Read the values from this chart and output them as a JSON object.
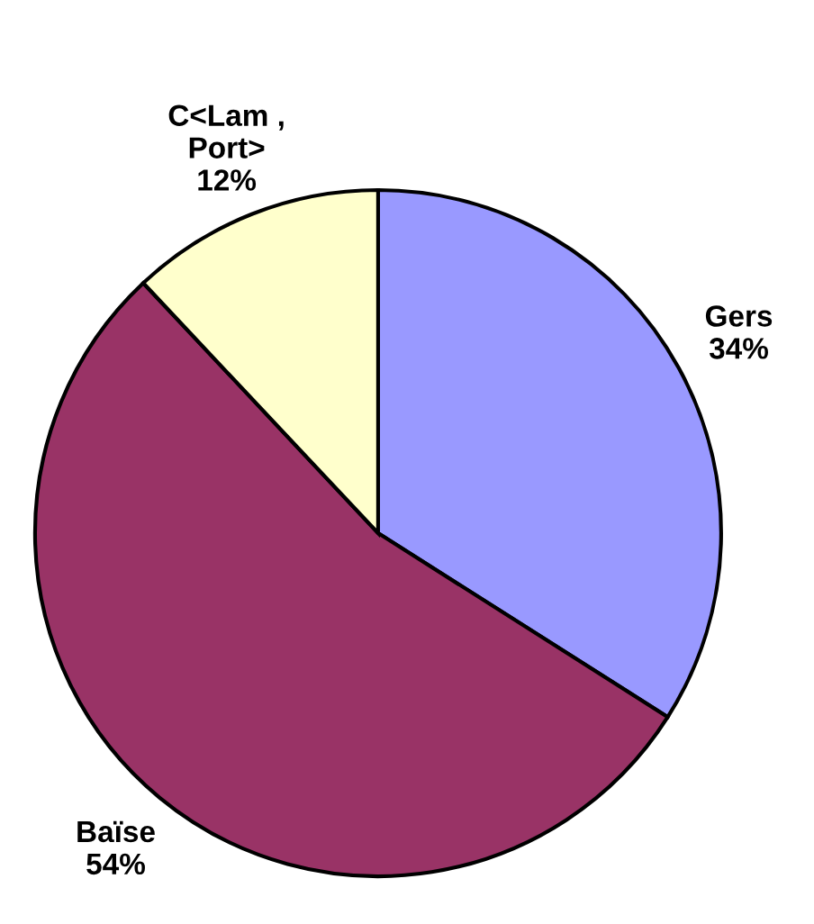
{
  "chart_data": {
    "type": "pie",
    "categories": [
      "Gers",
      "Baïse",
      "C<Lam ,\nPort>"
    ],
    "values": [
      34,
      54,
      12
    ],
    "value_labels": [
      "34%",
      "54%",
      "12%"
    ],
    "colors": [
      "#9999ff",
      "#993366",
      "#ffffcc"
    ]
  }
}
